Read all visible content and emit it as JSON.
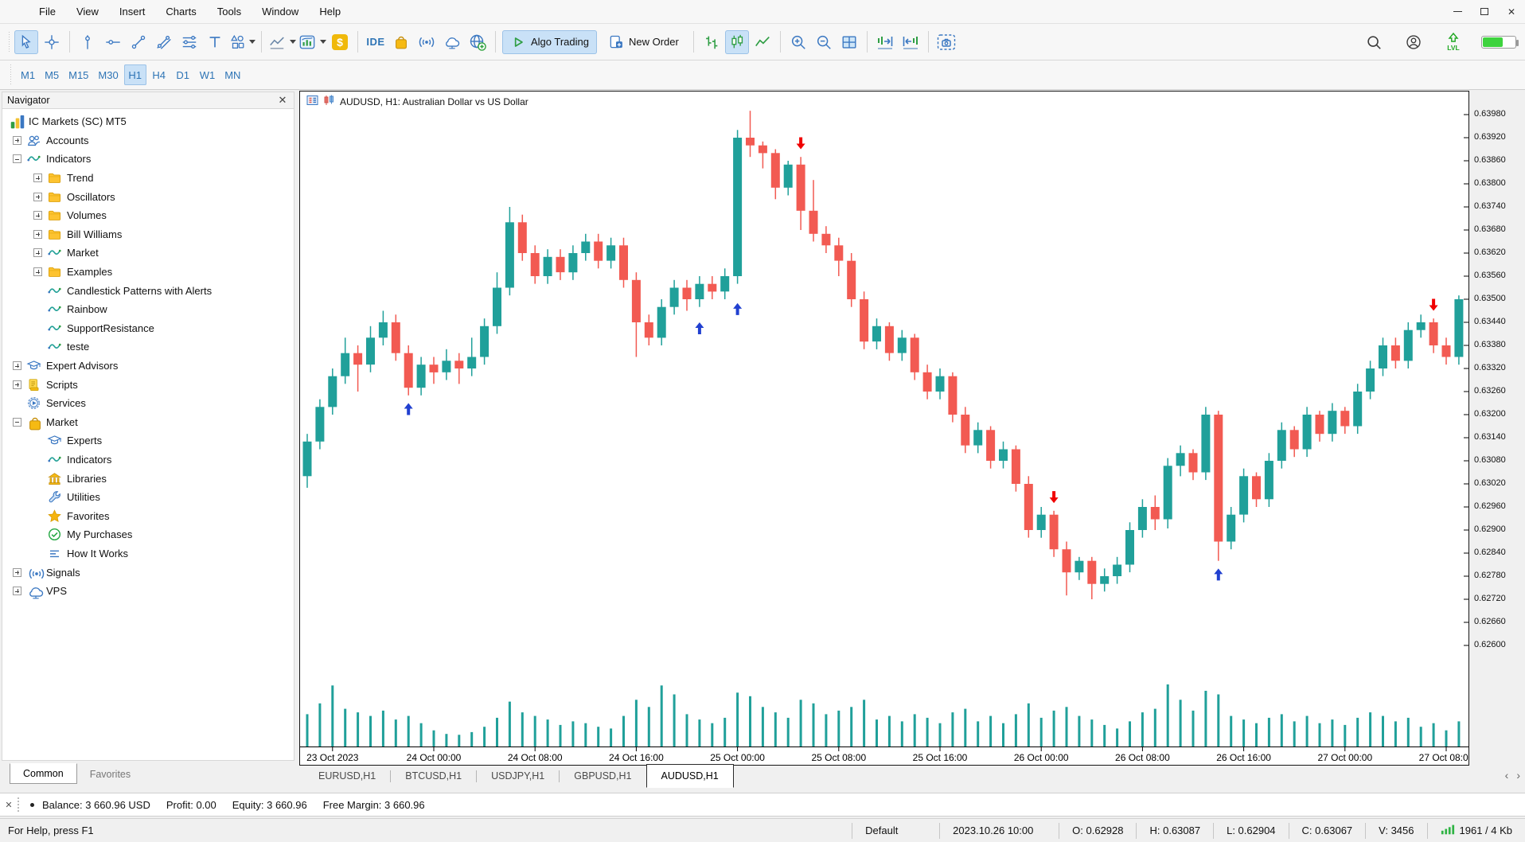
{
  "window": {
    "title_controls": [
      "minimize",
      "maximize",
      "close"
    ]
  },
  "menu": {
    "items": [
      "File",
      "View",
      "Insert",
      "Charts",
      "Tools",
      "Window",
      "Help"
    ]
  },
  "toolbar": {
    "groups": [
      {
        "items": [
          {
            "icon": "cursor-icon",
            "name": "cursor-tool",
            "active": true
          },
          {
            "icon": "crosshair-icon",
            "name": "crosshair-tool"
          }
        ]
      },
      {
        "items": [
          {
            "icon": "vline-icon",
            "name": "vertical-line-tool"
          },
          {
            "icon": "hline-icon",
            "name": "horizontal-line-tool"
          },
          {
            "icon": "trendline-icon",
            "name": "trendline-tool"
          },
          {
            "icon": "channel-icon",
            "name": "channel-tool"
          },
          {
            "icon": "equidistant-icon",
            "name": "equidistant-tool"
          },
          {
            "icon": "text-icon",
            "name": "text-tool"
          },
          {
            "icon": "shapes-icon",
            "name": "shapes-tool",
            "caret": true
          }
        ]
      },
      {
        "items": [
          {
            "icon": "chartline-icon",
            "name": "chart-type-dropdown",
            "caret": true
          },
          {
            "icon": "indicator-icon",
            "name": "indicators-dropdown",
            "caret": true
          },
          {
            "icon": "dollar-icon",
            "name": "deposit-button"
          }
        ]
      },
      {
        "items": [
          {
            "icon": "ide-icon",
            "name": "ide-button"
          },
          {
            "icon": "bag-icon",
            "name": "market-button"
          },
          {
            "icon": "broadcast-icon",
            "name": "signals-button"
          },
          {
            "icon": "cloud-icon",
            "name": "vps-button"
          },
          {
            "icon": "globe-add-icon",
            "name": "community-button"
          }
        ]
      },
      {
        "items": [
          {
            "icon": "play-icon",
            "label": "Algo Trading",
            "name": "algo-trading-button",
            "active": true
          },
          {
            "icon": "new-order-icon",
            "label": "New Order",
            "name": "new-order-button"
          }
        ]
      },
      {
        "items": [
          {
            "icon": "bars-chart-icon",
            "name": "bars-view-button"
          },
          {
            "icon": "candles-chart-icon",
            "name": "candles-view-button",
            "active": true
          },
          {
            "icon": "line-chart-icon",
            "name": "line-view-button"
          }
        ]
      },
      {
        "items": [
          {
            "icon": "zoom-in-icon",
            "name": "zoom-in-button"
          },
          {
            "icon": "zoom-out-icon",
            "name": "zoom-out-button"
          },
          {
            "icon": "tile-windows-icon",
            "name": "tile-windows-button"
          }
        ]
      },
      {
        "items": [
          {
            "icon": "shift-end-icon",
            "name": "shift-chart-end-button"
          },
          {
            "icon": "shift-back-icon",
            "name": "shift-chart-back-button"
          }
        ]
      },
      {
        "items": [
          {
            "icon": "camera-icon",
            "name": "screenshot-button"
          }
        ]
      }
    ],
    "right_items": [
      {
        "icon": "search-icon",
        "name": "search-button"
      },
      {
        "icon": "profile-icon",
        "name": "profile-button"
      },
      {
        "icon": "lvl-icon",
        "name": "level-indicator",
        "label": "LVL"
      },
      {
        "icon": "battery-icon",
        "name": "connection-level",
        "percent": 60
      }
    ]
  },
  "timeframes": {
    "items": [
      "M1",
      "M5",
      "M15",
      "M30",
      "H1",
      "H4",
      "D1",
      "W1",
      "MN"
    ],
    "active": "H1"
  },
  "navigator": {
    "title": "Navigator",
    "tabs": [
      {
        "label": "Common",
        "active": true
      },
      {
        "label": "Favorites",
        "active": false
      }
    ],
    "tree": [
      {
        "label": "IC Markets (SC) MT5",
        "depth": 0,
        "icon": "logo-icon"
      },
      {
        "label": "Accounts",
        "depth": 1,
        "icon": "users-icon",
        "expander": "plus"
      },
      {
        "label": "Indicators",
        "depth": 1,
        "icon": "wave-icon",
        "expander": "minus"
      },
      {
        "label": "Trend",
        "depth": 2,
        "icon": "folder-icon",
        "expander": "plus"
      },
      {
        "label": "Oscillators",
        "depth": 2,
        "icon": "folder-icon",
        "expander": "plus"
      },
      {
        "label": "Volumes",
        "depth": 2,
        "icon": "folder-icon",
        "expander": "plus"
      },
      {
        "label": "Bill Williams",
        "depth": 2,
        "icon": "folder-icon",
        "expander": "plus"
      },
      {
        "label": "Market",
        "depth": 2,
        "icon": "wave-icon",
        "expander": "plus"
      },
      {
        "label": "Examples",
        "depth": 2,
        "icon": "folder-icon",
        "expander": "plus"
      },
      {
        "label": "Candlestick Patterns with Alerts",
        "depth": 2,
        "icon": "wave-icon"
      },
      {
        "label": "Rainbow",
        "depth": 2,
        "icon": "wave-icon"
      },
      {
        "label": "SupportResistance",
        "depth": 2,
        "icon": "wave-icon"
      },
      {
        "label": "teste",
        "depth": 2,
        "icon": "wave-icon"
      },
      {
        "label": "Expert Advisors",
        "depth": 1,
        "icon": "gradcap-icon",
        "expander": "plus"
      },
      {
        "label": "Scripts",
        "depth": 1,
        "icon": "script-icon",
        "expander": "plus"
      },
      {
        "label": "Services",
        "depth": 1,
        "icon": "gearplay-icon"
      },
      {
        "label": "Market",
        "depth": 1,
        "icon": "bag-icon",
        "expander": "minus"
      },
      {
        "label": "Experts",
        "depth": 2,
        "icon": "gradcap-icon"
      },
      {
        "label": "Indicators",
        "depth": 2,
        "icon": "wave-icon"
      },
      {
        "label": "Libraries",
        "depth": 2,
        "icon": "bank-icon"
      },
      {
        "label": "Utilities",
        "depth": 2,
        "icon": "wrench-icon"
      },
      {
        "label": "Favorites",
        "depth": 2,
        "icon": "star-icon"
      },
      {
        "label": "My Purchases",
        "depth": 2,
        "icon": "check-icon"
      },
      {
        "label": "How It Works",
        "depth": 2,
        "icon": "rows-icon"
      },
      {
        "label": "Signals",
        "depth": 1,
        "icon": "broadcast-icon",
        "expander": "plus"
      },
      {
        "label": "VPS",
        "depth": 1,
        "icon": "cloud-icon",
        "expander": "plus"
      }
    ]
  },
  "chart_tabs": {
    "items": [
      {
        "label": "EURUSD,H1",
        "active": false
      },
      {
        "label": "BTCUSD,H1",
        "active": false
      },
      {
        "label": "USDJPY,H1",
        "active": false
      },
      {
        "label": "GBPUSD,H1",
        "active": false
      },
      {
        "label": "AUDUSD,H1",
        "active": true
      }
    ]
  },
  "toolbox": {
    "items": [
      "Balance: 3 660.96 USD",
      "Profit: 0.00",
      "Equity: 3 660.96",
      "Free Margin: 3 660.96"
    ]
  },
  "statusbar": {
    "help": "For Help, press F1",
    "segments": [
      "Default",
      "2023.10.26 10:00",
      "O: 0.62928",
      "H: 0.63087",
      "L: 0.62904",
      "C: 0.63067",
      "V: 3456"
    ],
    "traffic": "1961 / 4 Kb"
  },
  "chart_data": {
    "type": "candlestick",
    "symbol": "AUDUSD",
    "timeframe": "H1",
    "title": "AUDUSD, H1:  Australian Dollar vs US Dollar",
    "colors": {
      "up": "#20a09a",
      "down": "#f25a52",
      "volume": "#20a09a",
      "arrow_up": "#2140d0",
      "arrow_down": "#f00000"
    },
    "price_axis": {
      "top_value": 0.6398,
      "step": 0.0006,
      "decimals": 5,
      "ticks": [
        "0.63980",
        "0.63920",
        "0.63860",
        "0.63800",
        "0.63740",
        "0.63680",
        "0.63620",
        "0.63560",
        "0.63500",
        "0.63440",
        "0.63380",
        "0.63320",
        "0.63260",
        "0.63200",
        "0.63140",
        "0.63080",
        "0.63020",
        "0.62960",
        "0.62900",
        "0.62840",
        "0.62780",
        "0.62720",
        "0.62660",
        "0.62600"
      ]
    },
    "time_labels": [
      {
        "i": 2,
        "t": "23 Oct 2023"
      },
      {
        "i": 10,
        "t": "24 Oct 00:00"
      },
      {
        "i": 18,
        "t": "24 Oct 08:00"
      },
      {
        "i": 26,
        "t": "24 Oct 16:00"
      },
      {
        "i": 34,
        "t": "25 Oct 00:00"
      },
      {
        "i": 42,
        "t": "25 Oct 08:00"
      },
      {
        "i": 50,
        "t": "25 Oct 16:00"
      },
      {
        "i": 58,
        "t": "26 Oct 00:00"
      },
      {
        "i": 66,
        "t": "26 Oct 08:00"
      },
      {
        "i": 74,
        "t": "26 Oct 16:00"
      },
      {
        "i": 82,
        "t": "27 Oct 00:00"
      },
      {
        "i": 90,
        "t": "27 Oct 08:00"
      }
    ],
    "candles": [
      [
        0.6304,
        0.6315,
        0.6301,
        0.6313
      ],
      [
        0.6313,
        0.6324,
        0.6311,
        0.6322
      ],
      [
        0.6322,
        0.6332,
        0.632,
        0.633
      ],
      [
        0.633,
        0.634,
        0.6328,
        0.6336
      ],
      [
        0.6336,
        0.6338,
        0.6326,
        0.6333
      ],
      [
        0.6333,
        0.6343,
        0.6331,
        0.634
      ],
      [
        0.634,
        0.6347,
        0.6338,
        0.6344
      ],
      [
        0.6344,
        0.6346,
        0.6334,
        0.6336
      ],
      [
        0.6336,
        0.6338,
        0.6325,
        0.6327
      ],
      [
        0.6327,
        0.6335,
        0.6325,
        0.6333
      ],
      [
        0.6333,
        0.6335,
        0.6328,
        0.6331
      ],
      [
        0.6331,
        0.6337,
        0.6329,
        0.6334
      ],
      [
        0.6334,
        0.6336,
        0.6328,
        0.6332
      ],
      [
        0.6332,
        0.634,
        0.633,
        0.6335
      ],
      [
        0.6335,
        0.6345,
        0.6333,
        0.6343
      ],
      [
        0.6343,
        0.6357,
        0.6341,
        0.6353
      ],
      [
        0.6353,
        0.6374,
        0.6351,
        0.637
      ],
      [
        0.637,
        0.6372,
        0.636,
        0.6362
      ],
      [
        0.6362,
        0.6364,
        0.6354,
        0.6356
      ],
      [
        0.6356,
        0.6363,
        0.6354,
        0.6361
      ],
      [
        0.6361,
        0.6363,
        0.6355,
        0.6357
      ],
      [
        0.6357,
        0.6364,
        0.6355,
        0.6362
      ],
      [
        0.6362,
        0.6367,
        0.636,
        0.6365
      ],
      [
        0.6365,
        0.6367,
        0.6358,
        0.636
      ],
      [
        0.636,
        0.6366,
        0.6358,
        0.6364
      ],
      [
        0.6364,
        0.6366,
        0.6353,
        0.6355
      ],
      [
        0.6355,
        0.6357,
        0.6335,
        0.6344
      ],
      [
        0.6344,
        0.6346,
        0.6338,
        0.634
      ],
      [
        0.634,
        0.635,
        0.6338,
        0.6348
      ],
      [
        0.6348,
        0.6355,
        0.6346,
        0.6353
      ],
      [
        0.6353,
        0.6355,
        0.6347,
        0.635
      ],
      [
        0.635,
        0.6356,
        0.6348,
        0.6354
      ],
      [
        0.6354,
        0.6356,
        0.635,
        0.6352
      ],
      [
        0.6352,
        0.6358,
        0.635,
        0.6356
      ],
      [
        0.6356,
        0.6394,
        0.6354,
        0.6392
      ],
      [
        0.6392,
        0.6399,
        0.6387,
        0.639
      ],
      [
        0.639,
        0.6391,
        0.6384,
        0.6388
      ],
      [
        0.6388,
        0.6389,
        0.6376,
        0.6379
      ],
      [
        0.6379,
        0.6386,
        0.6377,
        0.6385
      ],
      [
        0.6385,
        0.6387,
        0.6368,
        0.6373
      ],
      [
        0.6373,
        0.6381,
        0.6365,
        0.6367
      ],
      [
        0.6367,
        0.6369,
        0.6362,
        0.6364
      ],
      [
        0.6364,
        0.6366,
        0.6356,
        0.636
      ],
      [
        0.636,
        0.6362,
        0.6348,
        0.635
      ],
      [
        0.635,
        0.6352,
        0.6337,
        0.6339
      ],
      [
        0.6339,
        0.6345,
        0.6337,
        0.6343
      ],
      [
        0.6343,
        0.6344,
        0.6334,
        0.6336
      ],
      [
        0.6336,
        0.6342,
        0.6334,
        0.634
      ],
      [
        0.634,
        0.6341,
        0.6329,
        0.6331
      ],
      [
        0.6331,
        0.6333,
        0.6324,
        0.6326
      ],
      [
        0.6326,
        0.6332,
        0.6324,
        0.633
      ],
      [
        0.633,
        0.6331,
        0.6318,
        0.632
      ],
      [
        0.632,
        0.6322,
        0.631,
        0.6312
      ],
      [
        0.6312,
        0.6318,
        0.631,
        0.6316
      ],
      [
        0.6316,
        0.6317,
        0.6306,
        0.6308
      ],
      [
        0.6308,
        0.6313,
        0.6306,
        0.6311
      ],
      [
        0.6311,
        0.6312,
        0.63,
        0.6302
      ],
      [
        0.6302,
        0.6304,
        0.6288,
        0.629
      ],
      [
        0.629,
        0.6296,
        0.6288,
        0.6294
      ],
      [
        0.6294,
        0.6295,
        0.6283,
        0.6285
      ],
      [
        0.6285,
        0.6287,
        0.6273,
        0.6279
      ],
      [
        0.6279,
        0.6283,
        0.6277,
        0.6282
      ],
      [
        0.6282,
        0.6283,
        0.6272,
        0.6276
      ],
      [
        0.6276,
        0.628,
        0.6274,
        0.6278
      ],
      [
        0.6278,
        0.6283,
        0.6276,
        0.6281
      ],
      [
        0.6281,
        0.6292,
        0.6279,
        0.629
      ],
      [
        0.629,
        0.6298,
        0.6288,
        0.6296
      ],
      [
        0.6296,
        0.6299,
        0.629,
        0.62928
      ],
      [
        0.62928,
        0.63087,
        0.62904,
        0.63067
      ],
      [
        0.63067,
        0.6312,
        0.6304,
        0.631
      ],
      [
        0.631,
        0.6311,
        0.6303,
        0.6305
      ],
      [
        0.6305,
        0.6322,
        0.6303,
        0.632
      ],
      [
        0.632,
        0.6321,
        0.6282,
        0.6287
      ],
      [
        0.6287,
        0.6296,
        0.6285,
        0.6294
      ],
      [
        0.6294,
        0.6306,
        0.6292,
        0.6304
      ],
      [
        0.6304,
        0.6305,
        0.6296,
        0.6298
      ],
      [
        0.6298,
        0.631,
        0.6296,
        0.6308
      ],
      [
        0.6308,
        0.6318,
        0.6306,
        0.6316
      ],
      [
        0.6316,
        0.6317,
        0.6309,
        0.6311
      ],
      [
        0.6311,
        0.6322,
        0.6309,
        0.632
      ],
      [
        0.632,
        0.6321,
        0.6313,
        0.6315
      ],
      [
        0.6315,
        0.6323,
        0.6313,
        0.6321
      ],
      [
        0.6321,
        0.6322,
        0.6315,
        0.6317
      ],
      [
        0.6317,
        0.6328,
        0.6315,
        0.6326
      ],
      [
        0.6326,
        0.6334,
        0.6324,
        0.6332
      ],
      [
        0.6332,
        0.634,
        0.633,
        0.6338
      ],
      [
        0.6338,
        0.634,
        0.6332,
        0.6334
      ],
      [
        0.6334,
        0.6344,
        0.6332,
        0.6342
      ],
      [
        0.6342,
        0.6346,
        0.634,
        0.6344
      ],
      [
        0.6344,
        0.6345,
        0.6336,
        0.6338
      ],
      [
        0.6338,
        0.634,
        0.6333,
        0.6335
      ],
      [
        0.6335,
        0.6351,
        0.6333,
        0.635
      ]
    ],
    "volumes": [
      1800,
      2400,
      3400,
      2100,
      1900,
      1700,
      2000,
      1500,
      1700,
      1300,
      900,
      700,
      650,
      800,
      1100,
      1600,
      2500,
      1900,
      1700,
      1500,
      1200,
      1400,
      1300,
      1100,
      1000,
      1700,
      2600,
      2200,
      3400,
      2900,
      1800,
      1500,
      1300,
      1600,
      3000,
      2800,
      2200,
      1900,
      1600,
      2600,
      2400,
      1800,
      2000,
      2200,
      2600,
      1500,
      1700,
      1400,
      1800,
      1600,
      1300,
      1900,
      2100,
      1400,
      1700,
      1300,
      1800,
      2400,
      1600,
      2000,
      2200,
      1700,
      1500,
      1200,
      1000,
      1400,
      1900,
      2100,
      3456,
      2600,
      2000,
      3100,
      2900,
      1700,
      1500,
      1300,
      1600,
      1800,
      1400,
      1700,
      1300,
      1500,
      1200,
      1600,
      1900,
      1700,
      1400,
      1600,
      1100,
      1300,
      900,
      1400
    ],
    "signals": [
      {
        "i": 8,
        "dir": "up",
        "p": 0.6323
      },
      {
        "i": 31,
        "dir": "up",
        "p": 0.6344
      },
      {
        "i": 34,
        "dir": "up",
        "p": 0.6349
      },
      {
        "i": 72,
        "dir": "up",
        "p": 0.628
      },
      {
        "i": 39,
        "dir": "down",
        "p": 0.6389
      },
      {
        "i": 59,
        "dir": "down",
        "p": 0.6297
      },
      {
        "i": 89,
        "dir": "down",
        "p": 0.6347
      }
    ]
  }
}
